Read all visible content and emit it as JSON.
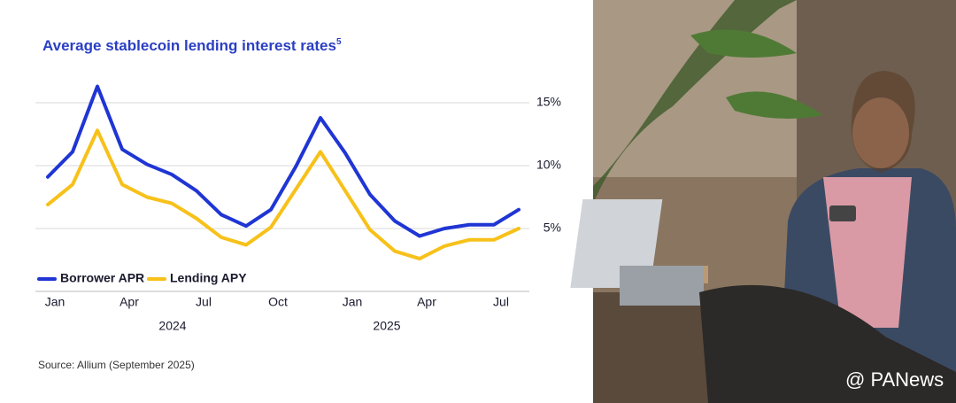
{
  "chart_data": {
    "type": "line",
    "title": "Average stablecoin lending interest rates",
    "title_note": "5",
    "source": "Source: Allium (September 2025)",
    "categories": [
      "Jan",
      null,
      null,
      "Apr",
      null,
      null,
      "Jul",
      null,
      null,
      "Oct",
      null,
      null,
      "Jan",
      null,
      null,
      "Apr",
      null,
      null,
      "Jul",
      null
    ],
    "year_labels": [
      "2024",
      "2025"
    ],
    "series": [
      {
        "name": "Borrower APR",
        "color": "#1f35d4",
        "values": [
          9.1,
          11.1,
          16.3,
          11.3,
          10.1,
          9.3,
          8.0,
          6.1,
          5.2,
          6.5,
          9.9,
          13.8,
          11.0,
          7.7,
          5.6,
          4.4,
          5.0,
          5.3,
          5.3,
          6.5
        ]
      },
      {
        "name": "Lending APY",
        "color": "#f7c11a",
        "values": [
          6.9,
          8.5,
          12.8,
          8.5,
          7.5,
          7.0,
          5.8,
          4.3,
          3.7,
          5.1,
          8.1,
          11.1,
          8.0,
          4.9,
          3.2,
          2.6,
          3.6,
          4.1,
          4.1,
          5.0
        ]
      }
    ],
    "ylim": [
      0,
      17
    ],
    "yticks": [
      {
        "value": 5,
        "label": "5%"
      },
      {
        "value": 10,
        "label": "10%"
      },
      {
        "value": 15,
        "label": "15%"
      }
    ],
    "grid": true,
    "legend": "bottom-left"
  },
  "watermark": "@ PANews"
}
